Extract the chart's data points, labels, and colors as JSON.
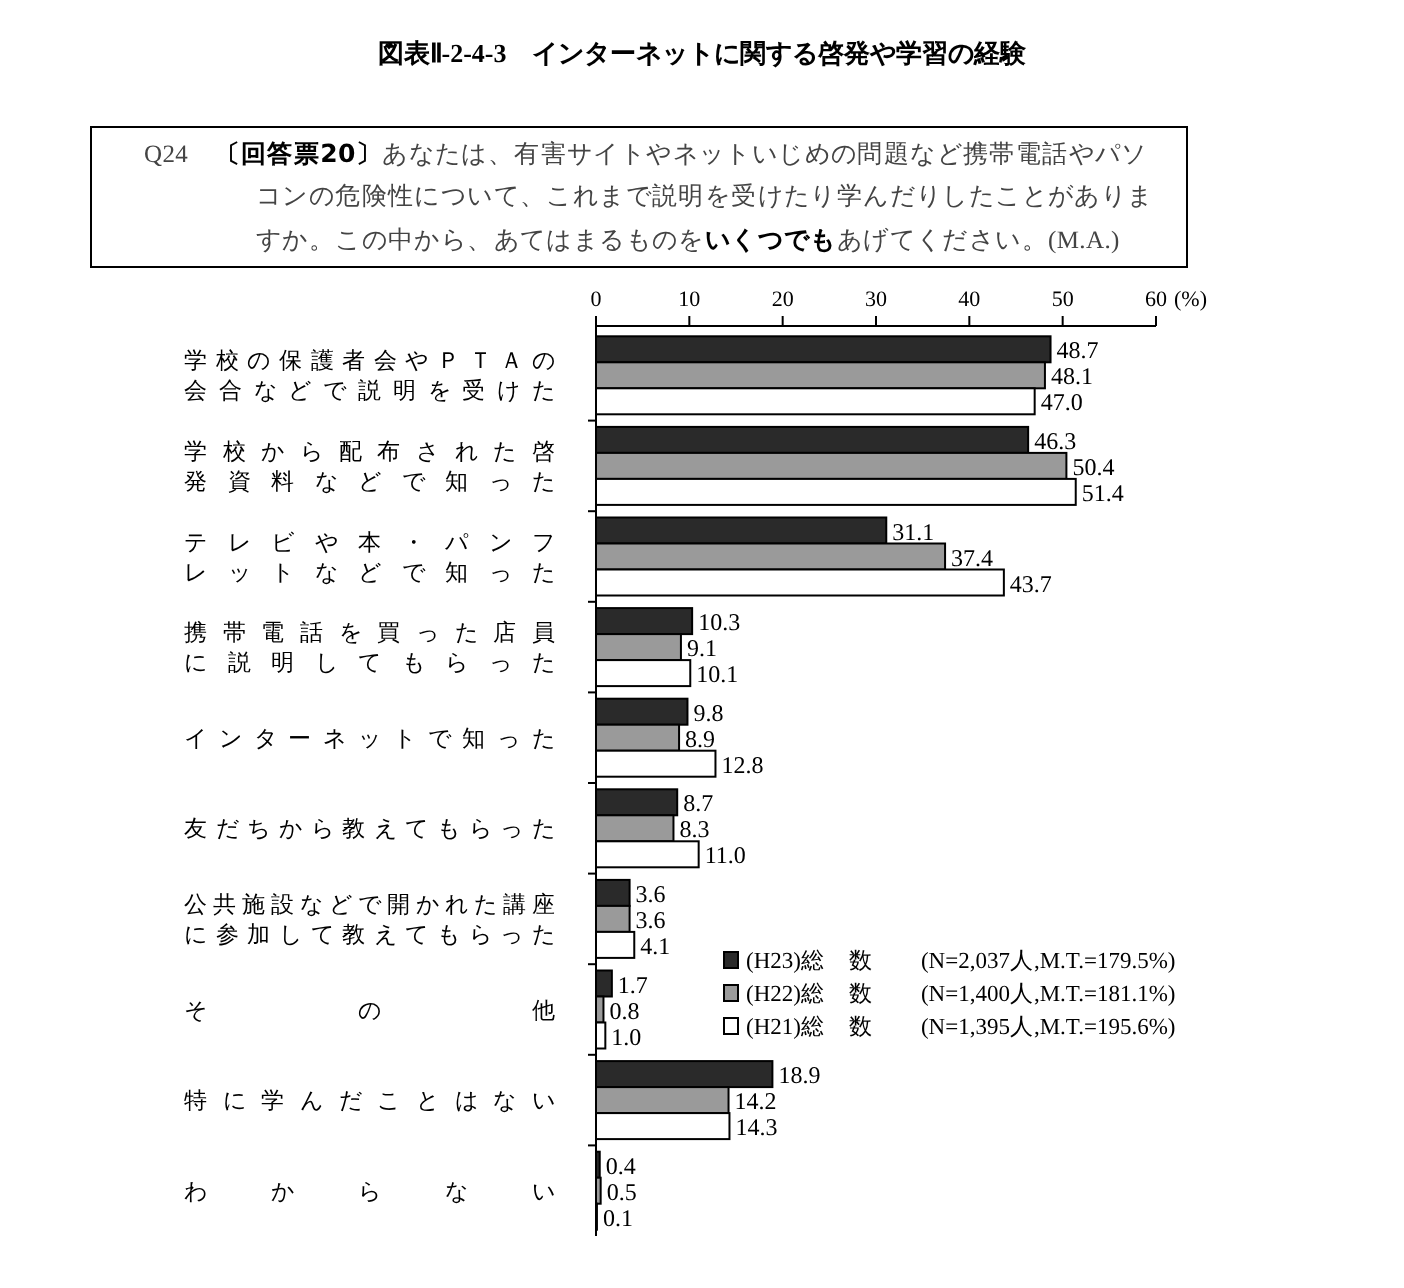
{
  "chart_data": {
    "type": "bar",
    "orientation": "horizontal",
    "title": "図表Ⅱ-2-4-3　インターネットに関する啓発や学習の経験",
    "subtitle": "Q24　**〔回答票20〕**あなたは、有害サイトやネットいじめの問題など携帯電話やパソコンの危険性について、これまで説明を受けたり学んだりしたことがありますか。この中から、あてはまるものを**いくつでも**あげてください。(M.A.)",
    "xlabel": "(%)",
    "categories": [
      "学校の保護者会やＰＴＡの会合などで説明を受けた",
      "学校から配布された啓発資料などで知った",
      "テレビや本・パンフレットなどで知った",
      "携帯電話を買った店員に説明してもらった",
      "インターネットで知った",
      "友だちから教えてもらった",
      "公共施設などで開かれた講座に参加して教えてもらった",
      "その他",
      "特に学んだことはない",
      "わからない"
    ],
    "series": [
      {
        "name": "(H23)総　数　　(N=2,037人,M.T.=179.5%)",
        "color": "#2a2a2a",
        "values": [
          48.7,
          46.3,
          31.1,
          10.3,
          9.8,
          8.7,
          3.6,
          1.7,
          18.9,
          0.4
        ],
        "value_labels": [
          "48.7",
          "46.3",
          "31.1",
          "10.3",
          "9.8",
          "8.7",
          "3.6",
          "1.7",
          "18.9",
          "0.4"
        ]
      },
      {
        "name": "(H22)総　数　　(N=1,400人,M.T.=181.1%)",
        "color": "#9a9a9a",
        "values": [
          48.1,
          50.4,
          37.4,
          9.1,
          8.9,
          8.3,
          3.6,
          0.8,
          14.2,
          0.5
        ],
        "value_labels": [
          "48.1",
          "50.4",
          "37.4",
          "9.1",
          "8.9",
          "8.3",
          "3.6",
          "0.8",
          "14.2",
          "0.5"
        ]
      },
      {
        "name": "(H21)総　数　　(N=1,395人,M.T.=195.6%)",
        "color": "#ffffff",
        "values": [
          47.0,
          51.4,
          43.7,
          10.1,
          12.8,
          11.0,
          4.1,
          1.0,
          14.3,
          0.1
        ],
        "value_labels": [
          "47.0",
          "51.4",
          "43.7",
          "10.1",
          "12.8",
          "11.0",
          "4.1",
          "1.0",
          "14.3",
          "0.1"
        ]
      }
    ],
    "xlim": [
      0,
      60
    ],
    "xticks": [
      0,
      10,
      20,
      30,
      40,
      50,
      60
    ],
    "legend": "right",
    "grid": false
  }
}
